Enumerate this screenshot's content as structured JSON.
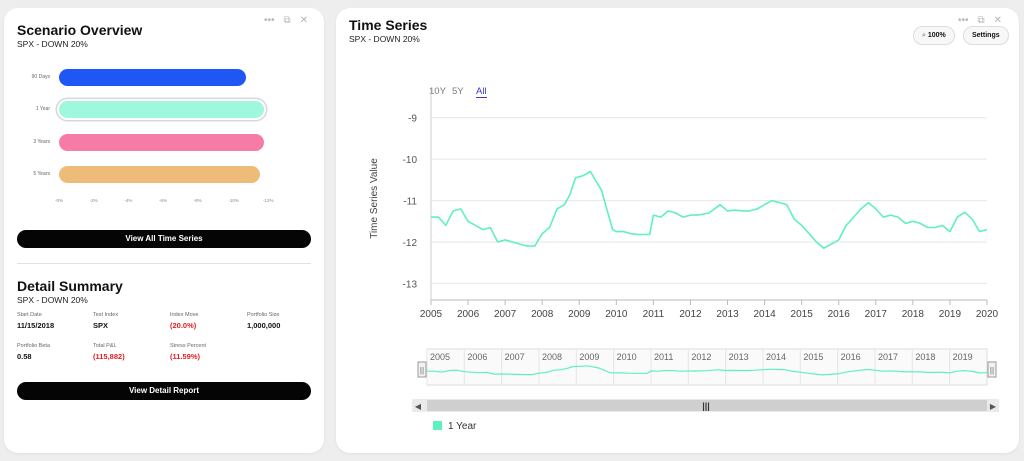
{
  "scenario": {
    "title": "Scenario Overview",
    "subtitle": "SPX - DOWN 20%",
    "tools": {
      "more": "•••",
      "popout": "⧉",
      "close": "✕"
    },
    "button": "View All Time Series"
  },
  "chart_data": [
    {
      "type": "bar",
      "orientation": "horizontal",
      "categories": [
        "90 Days",
        "1 Year",
        "3 Years",
        "5 Years"
      ],
      "values": [
        -10.8,
        -11.8,
        -11.8,
        -11.6
      ],
      "colors": [
        "#1f57f5",
        "#9ff8de",
        "#f67ba7",
        "#efbb78"
      ],
      "x_ticks": [
        "-0%",
        "-2%",
        "-4%",
        "-6%",
        "-8%",
        "-10%",
        "-12%"
      ],
      "xlim": [
        0,
        -12
      ],
      "selected_category": "1 Year"
    },
    {
      "type": "line",
      "title": "Time Series",
      "ylabel": "Time Series Value",
      "ylim": [
        -13.4,
        -8.5
      ],
      "y_ticks": [
        "-9",
        "-10",
        "-11",
        "-12",
        "-13"
      ],
      "x_ticks": [
        "2005",
        "2006",
        "2007",
        "2008",
        "2009",
        "2010",
        "2011",
        "2012",
        "2013",
        "2014",
        "2015",
        "2016",
        "2017",
        "2018",
        "2019",
        "2020"
      ],
      "xlim": [
        2005,
        2020
      ],
      "series": [
        {
          "name": "1 Year",
          "color": "#5ff0c2",
          "x": [
            2005.0,
            2005.2,
            2005.4,
            2005.6,
            2005.8,
            2006.0,
            2006.2,
            2006.4,
            2006.6,
            2006.8,
            2007.0,
            2007.2,
            2007.4,
            2007.6,
            2007.8,
            2008.0,
            2008.2,
            2008.4,
            2008.6,
            2008.75,
            2008.9,
            2009.1,
            2009.3,
            2009.6,
            2009.9,
            2010.0,
            2010.2,
            2010.4,
            2010.6,
            2010.9,
            2011.0,
            2011.2,
            2011.4,
            2011.6,
            2011.8,
            2012.0,
            2012.2,
            2012.5,
            2012.8,
            2013.0,
            2013.2,
            2013.4,
            2013.6,
            2013.8,
            2014.0,
            2014.2,
            2014.4,
            2014.6,
            2014.8,
            2015.0,
            2015.2,
            2015.4,
            2015.6,
            2015.8,
            2016.0,
            2016.2,
            2016.4,
            2016.6,
            2016.8,
            2017.0,
            2017.2,
            2017.4,
            2017.6,
            2017.8,
            2018.0,
            2018.2,
            2018.4,
            2018.6,
            2018.8,
            2019.0,
            2019.2,
            2019.4,
            2019.6,
            2019.8,
            2020.0
          ],
          "y": [
            -11.4,
            -11.4,
            -11.6,
            -11.25,
            -11.2,
            -11.5,
            -11.6,
            -11.7,
            -11.65,
            -12.0,
            -11.95,
            -12.0,
            -12.05,
            -12.1,
            -12.1,
            -11.8,
            -11.65,
            -11.2,
            -11.1,
            -10.85,
            -10.45,
            -10.4,
            -10.3,
            -10.75,
            -11.7,
            -11.75,
            -11.75,
            -11.8,
            -11.82,
            -11.82,
            -11.35,
            -11.4,
            -11.25,
            -11.3,
            -11.4,
            -11.35,
            -11.35,
            -11.3,
            -11.1,
            -11.25,
            -11.23,
            -11.25,
            -11.25,
            -11.2,
            -11.1,
            -11.0,
            -11.05,
            -11.1,
            -11.45,
            -11.6,
            -11.8,
            -12.0,
            -12.15,
            -12.05,
            -11.95,
            -11.6,
            -11.4,
            -11.2,
            -11.05,
            -11.2,
            -11.4,
            -11.35,
            -11.4,
            -11.55,
            -11.5,
            -11.55,
            -11.65,
            -11.65,
            -11.6,
            -11.75,
            -11.4,
            -11.28,
            -11.45,
            -11.75,
            -11.7
          ]
        }
      ]
    }
  ],
  "detail": {
    "title": "Detail Summary",
    "subtitle": "SPX - DOWN 20%",
    "fields": [
      {
        "label": "Start Date",
        "value": "11/15/2018"
      },
      {
        "label": "Test Index",
        "value": "SPX"
      },
      {
        "label": "Index Move",
        "value": "(20.0%)"
      },
      {
        "label": "Portfolio Size",
        "value": "1,000,000"
      },
      {
        "label": "Portfolio Beta",
        "value": "0.58"
      },
      {
        "label": "Total P&L",
        "value": "(115,882)"
      },
      {
        "label": "Stress Percent",
        "value": "(11.59%)"
      }
    ],
    "button": "View Detail Report"
  },
  "timeseries": {
    "title": "Time Series",
    "subtitle": "SPX - DOWN 20%",
    "tools": {
      "more": "•••",
      "popout": "⧉",
      "close": "✕"
    },
    "zoom_label": "100%",
    "settings_label": "Settings",
    "range_buttons": [
      "10Y",
      "5Y",
      "All"
    ],
    "active_range": "All",
    "navigator_years": [
      "2005",
      "2006",
      "2007",
      "2008",
      "2009",
      "2010",
      "2011",
      "2012",
      "2013",
      "2014",
      "2015",
      "2016",
      "2017",
      "2018",
      "2019"
    ],
    "legend": "1 Year",
    "scrollbar": {
      "left": "◀",
      "right": "▶",
      "grip": "|||",
      "handle": "||"
    }
  }
}
